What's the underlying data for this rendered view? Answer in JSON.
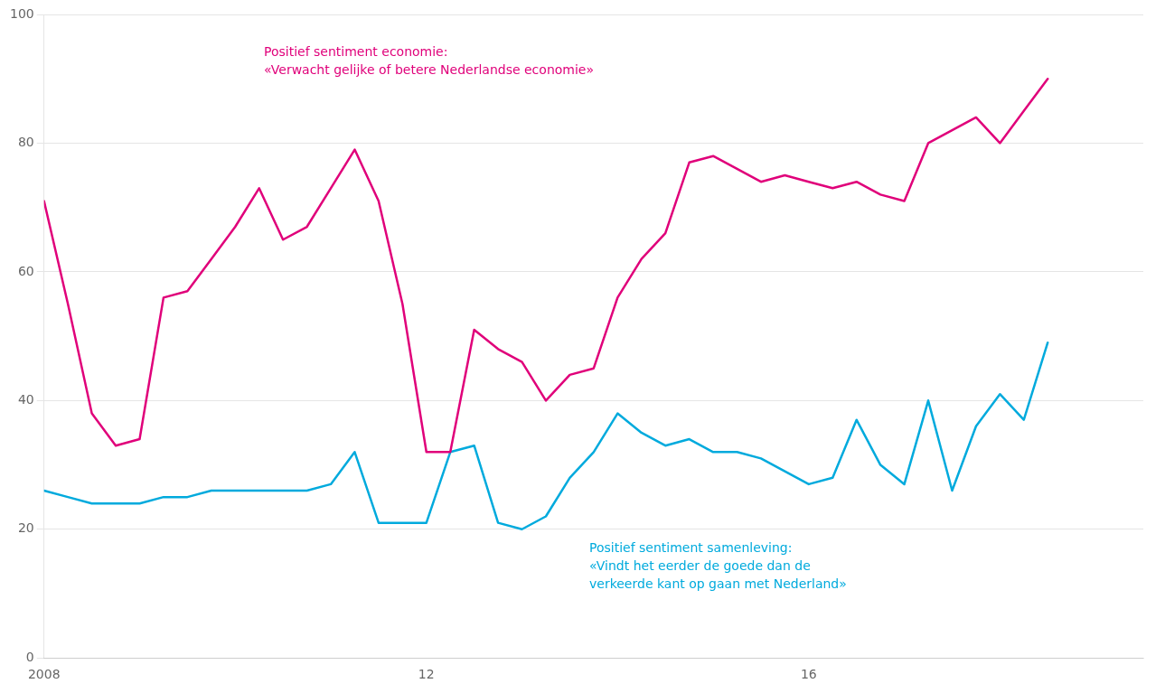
{
  "chart_data": {
    "type": "line",
    "x": [
      2008.0,
      2008.25,
      2008.5,
      2008.75,
      2009.0,
      2009.25,
      2009.5,
      2009.75,
      2010.0,
      2010.25,
      2010.5,
      2010.75,
      2011.0,
      2011.25,
      2011.5,
      2011.75,
      2012.0,
      2012.25,
      2012.5,
      2012.75,
      2013.0,
      2013.25,
      2013.5,
      2013.75,
      2014.0,
      2014.25,
      2014.5,
      2014.75,
      2015.0,
      2015.25,
      2015.5,
      2015.75,
      2016.0,
      2016.25,
      2016.5,
      2016.75,
      2017.0,
      2017.25,
      2017.5,
      2017.75,
      2018.0,
      2018.25,
      2018.5
    ],
    "series": [
      {
        "color": "#E0007A",
        "values": [
          71,
          55,
          38,
          33,
          34,
          56,
          57,
          62,
          67,
          73,
          65,
          67,
          73,
          79,
          71,
          55,
          32,
          32,
          51,
          48,
          46,
          40,
          44,
          45,
          56,
          62,
          66,
          77,
          78,
          76,
          74,
          75,
          74,
          73,
          74,
          72,
          71,
          80,
          82,
          84,
          80,
          85,
          90
        ]
      },
      {
        "color": "#00AADD",
        "values": [
          26,
          25,
          24,
          24,
          24,
          25,
          25,
          26,
          26,
          26,
          26,
          26,
          27,
          32,
          21,
          21,
          21,
          32,
          33,
          21,
          20,
          22,
          28,
          32,
          38,
          35,
          33,
          34,
          32,
          32,
          31,
          29,
          27,
          28,
          37,
          30,
          27,
          40,
          26,
          36,
          41,
          37,
          49
        ]
      }
    ],
    "xlim": [
      2008,
      2019.5
    ],
    "xticks": [
      2008,
      {
        "value": 2012,
        "label": "12"
      },
      {
        "value": 2016,
        "label": "16"
      }
    ],
    "ylim": [
      0,
      100
    ],
    "yticks": [
      0,
      20,
      40,
      60,
      80,
      100
    ],
    "grid": "y",
    "annotations": [
      {
        "color": "#E0007A",
        "lines": [
          "Positief sentiment economie:",
          "«Verwacht gelijke of betere Nederlandse economie»"
        ]
      },
      {
        "color": "#00AADD",
        "lines": [
          "Positief sentiment samenleving:",
          "«Vindt het eerder de goede dan de",
          "verkeerde kant op gaan met Nederland»"
        ]
      }
    ]
  }
}
